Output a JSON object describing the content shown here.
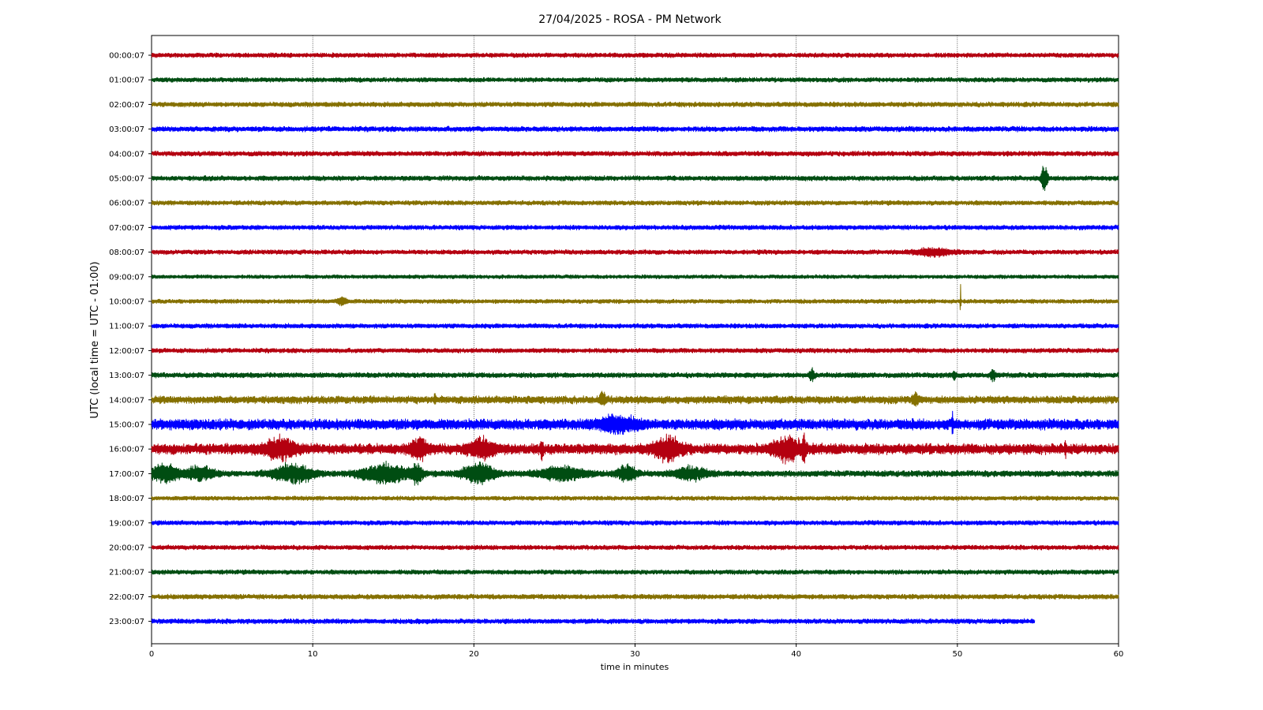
{
  "chart_data": {
    "type": "line",
    "title": "27/04/2025 - ROSA - PM Network",
    "xlabel": "time in minutes",
    "ylabel": "UTC (local time = UTC - 01:00)",
    "xlim": [
      0,
      60
    ],
    "xticks": [
      0,
      10,
      20,
      30,
      40,
      50,
      60
    ],
    "grid": "vertical dotted",
    "colors": [
      "#b40010",
      "#004d12",
      "#857000",
      "#0000ff"
    ],
    "rows": [
      {
        "label": "00:00:07",
        "noise": 0.3,
        "events": []
      },
      {
        "label": "01:00:07",
        "noise": 0.3,
        "events": []
      },
      {
        "label": "02:00:07",
        "noise": 0.32,
        "events": []
      },
      {
        "label": "03:00:07",
        "noise": 0.34,
        "events": []
      },
      {
        "label": "04:00:07",
        "noise": 0.32,
        "events": []
      },
      {
        "label": "05:00:07",
        "noise": 0.32,
        "events": [
          {
            "t": 55.4,
            "amp": 1.9,
            "width": 0.18
          }
        ]
      },
      {
        "label": "06:00:07",
        "noise": 0.3,
        "events": []
      },
      {
        "label": "07:00:07",
        "noise": 0.3,
        "events": []
      },
      {
        "label": "08:00:07",
        "noise": 0.3,
        "events": [
          {
            "t": 48.5,
            "amp": 0.45,
            "width": 1.2
          }
        ]
      },
      {
        "label": "09:00:07",
        "noise": 0.25,
        "events": []
      },
      {
        "label": "10:00:07",
        "noise": 0.28,
        "events": [
          {
            "t": 11.8,
            "amp": 0.55,
            "width": 0.25
          },
          {
            "t": 50.2,
            "amp": 2.3,
            "width": 0.03
          }
        ]
      },
      {
        "label": "11:00:07",
        "noise": 0.3,
        "events": []
      },
      {
        "label": "12:00:07",
        "noise": 0.3,
        "events": []
      },
      {
        "label": "13:00:07",
        "noise": 0.34,
        "events": [
          {
            "t": 41.0,
            "amp": 0.75,
            "width": 0.15
          },
          {
            "t": 52.2,
            "amp": 0.75,
            "width": 0.15
          },
          {
            "t": 49.8,
            "amp": 0.55,
            "width": 0.1
          }
        ]
      },
      {
        "label": "14:00:07",
        "noise": 0.5,
        "events": [
          {
            "t": 17.6,
            "amp": 0.9,
            "width": 0.05
          },
          {
            "t": 28.0,
            "amp": 0.8,
            "width": 0.2
          },
          {
            "t": 47.4,
            "amp": 0.7,
            "width": 0.2
          }
        ]
      },
      {
        "label": "15:00:07",
        "noise": 0.7,
        "events": [
          {
            "t": 49.7,
            "amp": 1.7,
            "width": 0.04
          },
          {
            "t": 29.0,
            "amp": 0.9,
            "width": 1.2
          }
        ]
      },
      {
        "label": "16:00:07",
        "noise": 0.7,
        "events": [
          {
            "t": 8.0,
            "amp": 1.2,
            "width": 1.0
          },
          {
            "t": 16.6,
            "amp": 1.2,
            "width": 0.5
          },
          {
            "t": 20.5,
            "amp": 1.1,
            "width": 0.8
          },
          {
            "t": 24.2,
            "amp": 1.3,
            "width": 0.1
          },
          {
            "t": 32.0,
            "amp": 1.4,
            "width": 0.8
          },
          {
            "t": 39.5,
            "amp": 1.3,
            "width": 1.0
          },
          {
            "t": 40.5,
            "amp": 1.4,
            "width": 0.1
          },
          {
            "t": 56.7,
            "amp": 0.8,
            "width": 0.05
          }
        ]
      },
      {
        "label": "17:00:07",
        "noise": 0.4,
        "events": [
          {
            "t": 0.8,
            "amp": 1.1,
            "width": 0.9
          },
          {
            "t": 3.0,
            "amp": 0.9,
            "width": 0.8
          },
          {
            "t": 8.8,
            "amp": 1.2,
            "width": 1.2
          },
          {
            "t": 14.5,
            "amp": 1.2,
            "width": 1.5
          },
          {
            "t": 16.5,
            "amp": 1.3,
            "width": 0.3
          },
          {
            "t": 20.3,
            "amp": 1.2,
            "width": 1.0
          },
          {
            "t": 25.5,
            "amp": 0.8,
            "width": 1.5
          },
          {
            "t": 29.5,
            "amp": 1.0,
            "width": 0.6
          },
          {
            "t": 33.5,
            "amp": 0.8,
            "width": 1.0
          }
        ]
      },
      {
        "label": "18:00:07",
        "noise": 0.28,
        "events": []
      },
      {
        "label": "19:00:07",
        "noise": 0.3,
        "events": []
      },
      {
        "label": "20:00:07",
        "noise": 0.3,
        "events": []
      },
      {
        "label": "21:00:07",
        "noise": 0.3,
        "events": []
      },
      {
        "label": "22:00:07",
        "noise": 0.32,
        "events": []
      },
      {
        "label": "23:00:07",
        "noise": 0.32,
        "end": 54.8,
        "events": []
      }
    ]
  }
}
